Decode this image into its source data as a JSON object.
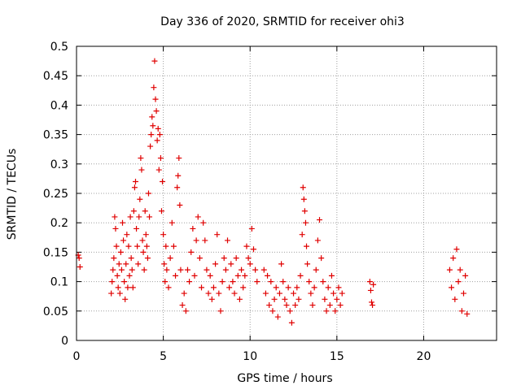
{
  "chart_data": {
    "type": "scatter",
    "title": "Day 336 of 2020, SRMTID for receiver ohi3",
    "xlabel": "GPS time / hours",
    "ylabel": "SRMTID / TECUs",
    "xlim": [
      0,
      24.2
    ],
    "ylim": [
      0,
      0.5
    ],
    "xticks": [
      0,
      5,
      10,
      15,
      20
    ],
    "yticks": [
      0,
      0.05,
      0.1,
      0.15,
      0.2,
      0.25,
      0.3,
      0.35,
      0.4,
      0.45,
      0.5
    ],
    "xtick_labels": [
      "0",
      "5",
      "10",
      "15",
      "20"
    ],
    "ytick_labels": [
      "0",
      "0.05",
      "0.1",
      "0.15",
      "0.2",
      "0.25",
      "0.3",
      "0.35",
      "0.4",
      "0.45",
      "0.5"
    ],
    "grid": true,
    "marker": "+",
    "series": [
      {
        "name": "SRMTID",
        "color": "#e00000",
        "points": [
          [
            0.1,
            0.145
          ],
          [
            0.15,
            0.14
          ],
          [
            0.2,
            0.125
          ],
          [
            2.0,
            0.08
          ],
          [
            2.05,
            0.1
          ],
          [
            2.1,
            0.12
          ],
          [
            2.15,
            0.14
          ],
          [
            2.2,
            0.21
          ],
          [
            2.25,
            0.19
          ],
          [
            2.3,
            0.16
          ],
          [
            2.35,
            0.11
          ],
          [
            2.4,
            0.09
          ],
          [
            2.45,
            0.13
          ],
          [
            2.5,
            0.08
          ],
          [
            2.55,
            0.15
          ],
          [
            2.6,
            0.12
          ],
          [
            2.65,
            0.2
          ],
          [
            2.7,
            0.17
          ],
          [
            2.75,
            0.1
          ],
          [
            2.8,
            0.07
          ],
          [
            2.85,
            0.13
          ],
          [
            2.9,
            0.18
          ],
          [
            2.95,
            0.09
          ],
          [
            3.0,
            0.16
          ],
          [
            3.05,
            0.11
          ],
          [
            3.1,
            0.21
          ],
          [
            3.15,
            0.14
          ],
          [
            3.2,
            0.12
          ],
          [
            3.25,
            0.09
          ],
          [
            3.3,
            0.22
          ],
          [
            3.35,
            0.26
          ],
          [
            3.4,
            0.27
          ],
          [
            3.45,
            0.19
          ],
          [
            3.5,
            0.16
          ],
          [
            3.55,
            0.13
          ],
          [
            3.6,
            0.21
          ],
          [
            3.65,
            0.24
          ],
          [
            3.7,
            0.31
          ],
          [
            3.75,
            0.29
          ],
          [
            3.8,
            0.17
          ],
          [
            3.85,
            0.15
          ],
          [
            3.9,
            0.12
          ],
          [
            3.95,
            0.22
          ],
          [
            4.0,
            0.18
          ],
          [
            4.05,
            0.16
          ],
          [
            4.1,
            0.14
          ],
          [
            4.15,
            0.25
          ],
          [
            4.2,
            0.21
          ],
          [
            4.25,
            0.33
          ],
          [
            4.3,
            0.35
          ],
          [
            4.35,
            0.38
          ],
          [
            4.4,
            0.365
          ],
          [
            4.45,
            0.43
          ],
          [
            4.5,
            0.475
          ],
          [
            4.55,
            0.41
          ],
          [
            4.6,
            0.39
          ],
          [
            4.65,
            0.34
          ],
          [
            4.7,
            0.36
          ],
          [
            4.75,
            0.29
          ],
          [
            4.8,
            0.35
          ],
          [
            4.85,
            0.31
          ],
          [
            4.9,
            0.22
          ],
          [
            4.95,
            0.27
          ],
          [
            5.0,
            0.18
          ],
          [
            5.05,
            0.13
          ],
          [
            5.1,
            0.1
          ],
          [
            5.15,
            0.16
          ],
          [
            5.2,
            0.12
          ],
          [
            5.3,
            0.09
          ],
          [
            5.4,
            0.14
          ],
          [
            5.5,
            0.2
          ],
          [
            5.6,
            0.16
          ],
          [
            5.7,
            0.11
          ],
          [
            5.8,
            0.26
          ],
          [
            5.85,
            0.28
          ],
          [
            5.9,
            0.31
          ],
          [
            5.95,
            0.23
          ],
          [
            6.0,
            0.12
          ],
          [
            6.1,
            0.06
          ],
          [
            6.2,
            0.08
          ],
          [
            6.3,
            0.05
          ],
          [
            6.4,
            0.12
          ],
          [
            6.5,
            0.1
          ],
          [
            6.6,
            0.15
          ],
          [
            6.7,
            0.19
          ],
          [
            6.8,
            0.11
          ],
          [
            6.9,
            0.17
          ],
          [
            7.0,
            0.21
          ],
          [
            7.1,
            0.14
          ],
          [
            7.2,
            0.09
          ],
          [
            7.3,
            0.2
          ],
          [
            7.4,
            0.17
          ],
          [
            7.5,
            0.12
          ],
          [
            7.6,
            0.08
          ],
          [
            7.7,
            0.11
          ],
          [
            7.8,
            0.07
          ],
          [
            7.9,
            0.09
          ],
          [
            8.0,
            0.13
          ],
          [
            8.1,
            0.18
          ],
          [
            8.2,
            0.08
          ],
          [
            8.3,
            0.05
          ],
          [
            8.4,
            0.1
          ],
          [
            8.5,
            0.14
          ],
          [
            8.6,
            0.12
          ],
          [
            8.7,
            0.17
          ],
          [
            8.8,
            0.09
          ],
          [
            8.9,
            0.13
          ],
          [
            9.0,
            0.1
          ],
          [
            9.1,
            0.08
          ],
          [
            9.2,
            0.14
          ],
          [
            9.3,
            0.11
          ],
          [
            9.4,
            0.07
          ],
          [
            9.5,
            0.12
          ],
          [
            9.6,
            0.09
          ],
          [
            9.7,
            0.11
          ],
          [
            9.8,
            0.16
          ],
          [
            9.9,
            0.14
          ],
          [
            10.0,
            0.13
          ],
          [
            10.1,
            0.19
          ],
          [
            10.2,
            0.155
          ],
          [
            10.3,
            0.12
          ],
          [
            10.4,
            0.1
          ],
          [
            10.8,
            0.12
          ],
          [
            10.9,
            0.08
          ],
          [
            11.0,
            0.11
          ],
          [
            11.1,
            0.06
          ],
          [
            11.2,
            0.1
          ],
          [
            11.3,
            0.05
          ],
          [
            11.4,
            0.07
          ],
          [
            11.5,
            0.09
          ],
          [
            11.6,
            0.04
          ],
          [
            11.7,
            0.08
          ],
          [
            11.8,
            0.13
          ],
          [
            11.9,
            0.1
          ],
          [
            12.0,
            0.07
          ],
          [
            12.1,
            0.06
          ],
          [
            12.2,
            0.09
          ],
          [
            12.3,
            0.05
          ],
          [
            12.4,
            0.03
          ],
          [
            12.5,
            0.08
          ],
          [
            12.6,
            0.06
          ],
          [
            12.7,
            0.09
          ],
          [
            12.8,
            0.07
          ],
          [
            12.9,
            0.11
          ],
          [
            13.0,
            0.18
          ],
          [
            13.05,
            0.26
          ],
          [
            13.1,
            0.24
          ],
          [
            13.15,
            0.22
          ],
          [
            13.2,
            0.2
          ],
          [
            13.25,
            0.16
          ],
          [
            13.3,
            0.13
          ],
          [
            13.4,
            0.1
          ],
          [
            13.5,
            0.08
          ],
          [
            13.6,
            0.06
          ],
          [
            13.7,
            0.09
          ],
          [
            13.8,
            0.12
          ],
          [
            13.9,
            0.17
          ],
          [
            14.0,
            0.205
          ],
          [
            14.1,
            0.14
          ],
          [
            14.2,
            0.1
          ],
          [
            14.3,
            0.07
          ],
          [
            14.4,
            0.05
          ],
          [
            14.5,
            0.09
          ],
          [
            14.6,
            0.06
          ],
          [
            14.7,
            0.11
          ],
          [
            14.8,
            0.08
          ],
          [
            14.9,
            0.05
          ],
          [
            15.0,
            0.07
          ],
          [
            15.1,
            0.09
          ],
          [
            15.2,
            0.06
          ],
          [
            15.3,
            0.08
          ],
          [
            16.9,
            0.1
          ],
          [
            16.95,
            0.085
          ],
          [
            17.0,
            0.065
          ],
          [
            17.05,
            0.06
          ],
          [
            17.1,
            0.095
          ],
          [
            21.5,
            0.12
          ],
          [
            21.6,
            0.09
          ],
          [
            21.7,
            0.14
          ],
          [
            21.8,
            0.07
          ],
          [
            21.9,
            0.155
          ],
          [
            22.0,
            0.1
          ],
          [
            22.1,
            0.12
          ],
          [
            22.2,
            0.05
          ],
          [
            22.3,
            0.08
          ],
          [
            22.4,
            0.11
          ],
          [
            22.5,
            0.045
          ]
        ]
      }
    ]
  }
}
